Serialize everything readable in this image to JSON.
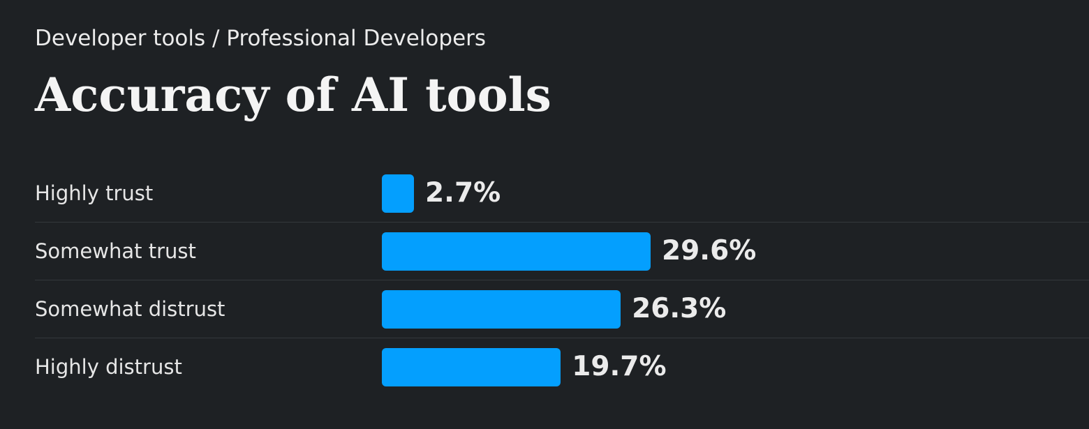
{
  "breadcrumb": "Developer tools / Professional Developers",
  "title": "Accuracy of AI tools",
  "colors": {
    "background": "#1e2124",
    "bar": "#049ffe",
    "text": "#e8e8e8"
  },
  "chart_data": {
    "type": "bar",
    "orientation": "horizontal",
    "title": "Accuracy of AI tools",
    "categories": [
      "Highly trust",
      "Somewhat trust",
      "Somewhat distrust",
      "Highly distrust"
    ],
    "values": [
      2.7,
      29.6,
      26.3,
      19.7
    ],
    "value_labels": [
      "2.7%",
      "29.6%",
      "26.3%",
      "19.7%"
    ],
    "unit": "%",
    "xlim": [
      0,
      29.6
    ],
    "xlabel": "",
    "ylabel": "",
    "grid": false,
    "legend": "none"
  }
}
